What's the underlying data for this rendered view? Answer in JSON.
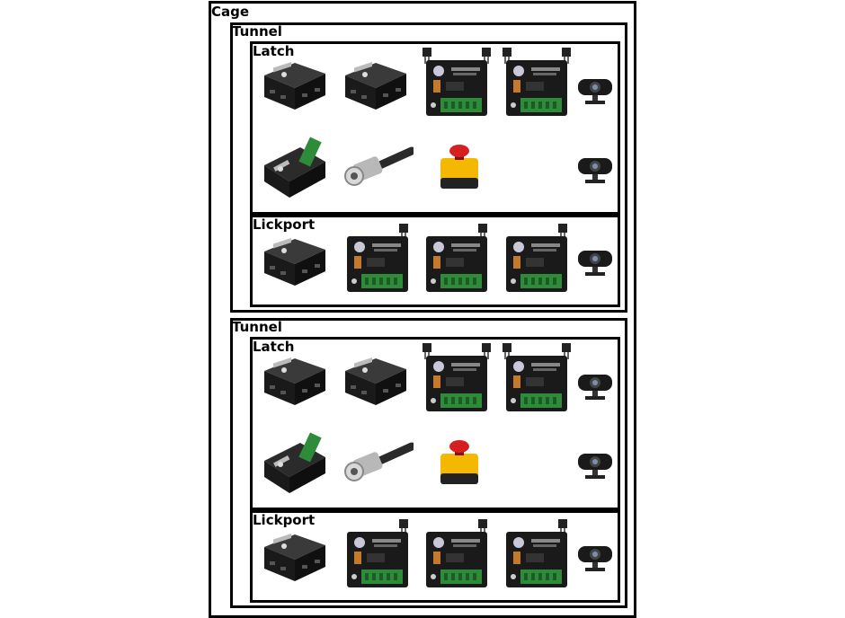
{
  "cage": {
    "label": "Cage",
    "tunnels": [
      {
        "label": "Tunnel",
        "latch": {
          "label": "Latch",
          "row1": [
            "vmot-hub-pedget",
            "vmot-hub-pedget",
            "stepper-pedget-with-connectors",
            "stepper-pedget-with-connectors",
            "webcam"
          ],
          "row2": [
            "breakout-pedget",
            "bnc-cable",
            "emergency-stop-button",
            "webcam"
          ]
        },
        "lickport": {
          "label": "Lickport",
          "row1": [
            "vmot-hub-pedget",
            "stepper-pedget-with-connector",
            "stepper-pedget-with-connector",
            "stepper-pedget-with-connector",
            "webcam"
          ]
        }
      },
      {
        "label": "Tunnel",
        "latch": {
          "label": "Latch",
          "row1": [
            "vmot-hub-pedget",
            "vmot-hub-pedget",
            "stepper-pedget-with-connectors",
            "stepper-pedget-with-connectors",
            "webcam"
          ],
          "row2": [
            "breakout-pedget",
            "bnc-cable",
            "emergency-stop-button",
            "webcam"
          ]
        },
        "lickport": {
          "label": "Lickport",
          "row1": [
            "vmot-hub-pedget",
            "stepper-pedget-with-connector",
            "stepper-pedget-with-connector",
            "stepper-pedget-with-connector",
            "webcam"
          ]
        }
      }
    ]
  },
  "colors": {
    "border": "#000000",
    "device_body": "#1a1a1a",
    "terminal_green": "#2e8b3a",
    "estop_yellow": "#f5b800",
    "estop_red": "#d62020"
  }
}
